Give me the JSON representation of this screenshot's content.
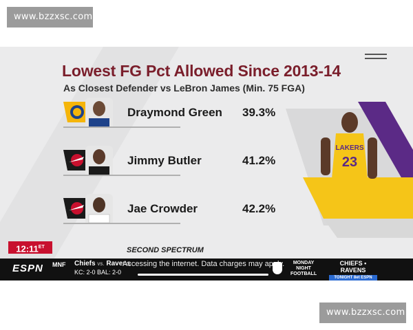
{
  "watermark": {
    "top": "www.bzzxsc.com",
    "bottom": "www.bzzxsc.com"
  },
  "graphic": {
    "title": "Lowest FG Pct Allowed Since 2013-14",
    "subtitle": "As Closest Defender vs LeBron James (Min. 75 FGA)",
    "rows": [
      {
        "name": "Draymond Green",
        "pct": "39.3%",
        "team_icon": "warriors-logo-icon"
      },
      {
        "name": "Jimmy Butler",
        "pct": "41.2%",
        "team_icon": "heat-logo-icon"
      },
      {
        "name": "Jae Crowder",
        "pct": "42.2%",
        "team_icon": "heat-logo-icon"
      }
    ],
    "provider": "SECOND SPECTRUM",
    "jersey_brand": "LAKERS",
    "jersey_number": "23",
    "colors": {
      "title": "#7a1e2b",
      "lakers_purple": "#5b2a86",
      "lakers_gold": "#f5c518",
      "warriors_blue": "#1d428a",
      "heat_red": "#c8102e"
    }
  },
  "clock": {
    "time": "12:11",
    "zone": "ET"
  },
  "ticker": {
    "network": "ESPN",
    "league": "MNF",
    "team1": "Chiefs",
    "vs": "vs.",
    "team2": "Ravens",
    "scores": "KC: 2-0   BAL: 2-0",
    "overlay_message": "Accessing the internet. Data charges may apply.",
    "mnf_logo": [
      "MONDAY",
      "NIGHT",
      "FOOTBALL"
    ],
    "promo_title": "CHIEFS • RAVENS",
    "promo_sub": "TONIGHT 8et ESPN"
  }
}
